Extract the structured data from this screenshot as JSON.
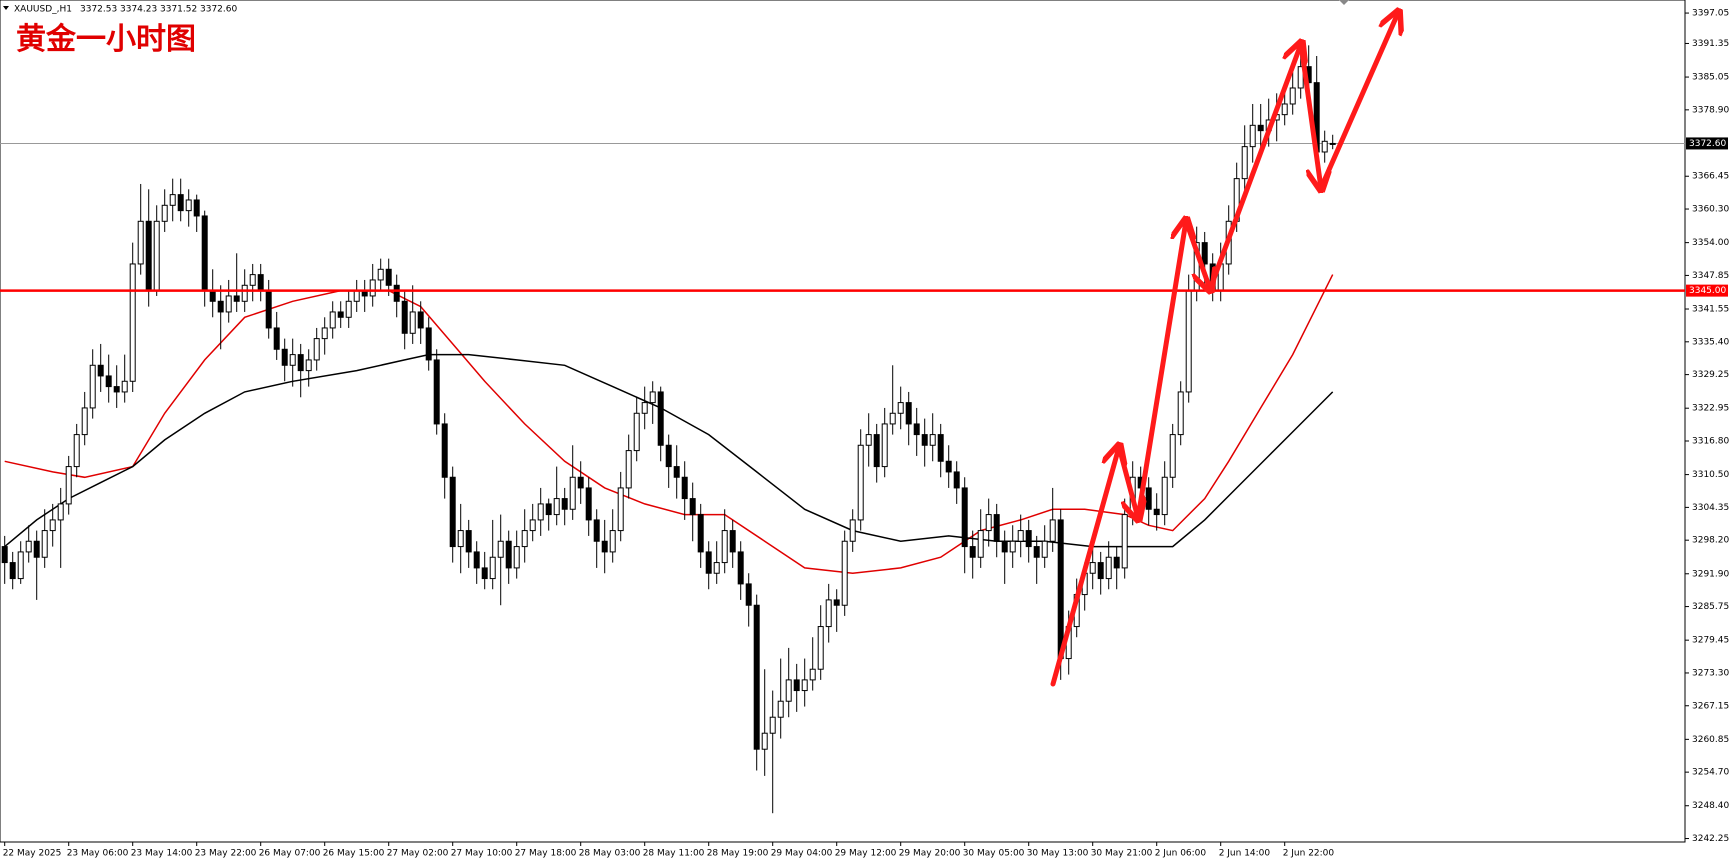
{
  "chart_data": {
    "type": "candlestick",
    "symbol": "XAUUSD_,H1",
    "header_values": [
      "3372.53",
      "3374.23",
      "3371.52",
      "3372.60"
    ],
    "title": "黄金一小时图",
    "categories": [
      "22 May 2025",
      null,
      null,
      null,
      null,
      null,
      null,
      null,
      "23 May 06:00",
      null,
      null,
      null,
      null,
      null,
      null,
      null,
      "23 May 14:00",
      null,
      null,
      null,
      null,
      null,
      null,
      null,
      "23 May 22:00",
      null,
      null,
      null,
      null,
      null,
      null,
      null,
      "26 May 07:00",
      null,
      null,
      null,
      null,
      null,
      null,
      null,
      "26 May 15:00",
      null,
      null,
      null,
      null,
      null,
      null,
      null,
      "27 May 02:00",
      null,
      null,
      null,
      null,
      null,
      null,
      null,
      "27 May 10:00",
      null,
      null,
      null,
      null,
      null,
      null,
      null,
      "27 May 18:00",
      null,
      null,
      null,
      null,
      null,
      null,
      null,
      "28 May 03:00",
      null,
      null,
      null,
      null,
      null,
      null,
      null,
      "28 May 11:00",
      null,
      null,
      null,
      null,
      null,
      null,
      null,
      "28 May 19:00",
      null,
      null,
      null,
      null,
      null,
      null,
      null,
      "29 May 04:00",
      null,
      null,
      null,
      null,
      null,
      null,
      null,
      "29 May 12:00",
      null,
      null,
      null,
      null,
      null,
      null,
      null,
      "29 May 20:00",
      null,
      null,
      null,
      null,
      null,
      null,
      null,
      "30 May 05:00",
      null,
      null,
      null,
      null,
      null,
      null,
      null,
      "30 May 13:00",
      null,
      null,
      null,
      null,
      null,
      null,
      null,
      "30 May 21:00",
      null,
      null,
      null,
      null,
      null,
      null,
      null,
      "2 Jun 06:00",
      null,
      null,
      null,
      null,
      null,
      null,
      null,
      "2 Jun 14:00",
      null,
      null,
      null,
      null,
      null,
      null,
      null,
      "2 Jun 22:00",
      null,
      null,
      null,
      null,
      null,
      null
    ],
    "ohlc": [
      [
        3297,
        3299,
        3290,
        3294
      ],
      [
        3294,
        3296,
        3289,
        3291
      ],
      [
        3291,
        3298,
        3290,
        3296
      ],
      [
        3296,
        3301,
        3294,
        3298
      ],
      [
        3298,
        3300,
        3287,
        3295
      ],
      [
        3295,
        3304,
        3293,
        3300
      ],
      [
        3300,
        3305,
        3297,
        3302
      ],
      [
        3302,
        3308,
        3293,
        3305
      ],
      [
        3305,
        3314,
        3303,
        3312
      ],
      [
        3312,
        3320,
        3310,
        3318
      ],
      [
        3318,
        3326,
        3316,
        3323
      ],
      [
        3323,
        3334,
        3321,
        3331
      ],
      [
        3331,
        3335,
        3326,
        3329
      ],
      [
        3329,
        3333,
        3324,
        3327
      ],
      [
        3327,
        3331,
        3323,
        3326
      ],
      [
        3326,
        3333,
        3324,
        3328
      ],
      [
        3328,
        3354,
        3326,
        3350
      ],
      [
        3350,
        3365,
        3348,
        3358
      ],
      [
        3358,
        3364,
        3342,
        3345
      ],
      [
        3345,
        3361,
        3344,
        3358
      ],
      [
        3358,
        3364,
        3356,
        3361
      ],
      [
        3361,
        3366,
        3358,
        3363
      ],
      [
        3363,
        3366,
        3358,
        3360
      ],
      [
        3360,
        3364,
        3357,
        3362
      ],
      [
        3362,
        3363,
        3356,
        3359
      ],
      [
        3359,
        3360,
        3342,
        3345
      ],
      [
        3345,
        3349,
        3340,
        3343
      ],
      [
        3343,
        3346,
        3334,
        3341
      ],
      [
        3341,
        3347,
        3339,
        3344
      ],
      [
        3344,
        3352,
        3341,
        3343
      ],
      [
        3343,
        3349,
        3341,
        3346
      ],
      [
        3346,
        3350,
        3343,
        3348
      ],
      [
        3348,
        3350,
        3343,
        3345
      ],
      [
        3345,
        3347,
        3336,
        3338
      ],
      [
        3338,
        3341,
        3332,
        3334
      ],
      [
        3334,
        3336,
        3328,
        3331
      ],
      [
        3331,
        3336,
        3327,
        3333
      ],
      [
        3333,
        3335,
        3325,
        3330
      ],
      [
        3330,
        3334,
        3327,
        3332
      ],
      [
        3332,
        3338,
        3330,
        3336
      ],
      [
        3336,
        3340,
        3333,
        3338
      ],
      [
        3338,
        3343,
        3336,
        3341
      ],
      [
        3341,
        3343,
        3338,
        3340
      ],
      [
        3340,
        3345,
        3338,
        3343
      ],
      [
        3343,
        3347,
        3341,
        3345
      ],
      [
        3345,
        3347,
        3341,
        3344
      ],
      [
        3344,
        3350,
        3342,
        3347
      ],
      [
        3347,
        3351,
        3345,
        3349
      ],
      [
        3349,
        3351,
        3344,
        3346
      ],
      [
        3346,
        3348,
        3340,
        3343
      ],
      [
        3343,
        3345,
        3334,
        3337
      ],
      [
        3337,
        3346,
        3335,
        3341
      ],
      [
        3341,
        3343,
        3335,
        3338
      ],
      [
        3338,
        3340,
        3330,
        3332
      ],
      [
        3332,
        3334,
        3318,
        3320
      ],
      [
        3320,
        3322,
        3306,
        3310
      ],
      [
        3310,
        3312,
        3294,
        3297
      ],
      [
        3297,
        3305,
        3292,
        3300
      ],
      [
        3300,
        3302,
        3293,
        3296
      ],
      [
        3296,
        3298,
        3290,
        3293
      ],
      [
        3293,
        3296,
        3289,
        3291
      ],
      [
        3291,
        3302,
        3289,
        3295
      ],
      [
        3295,
        3303,
        3286,
        3298
      ],
      [
        3298,
        3300,
        3290,
        3293
      ],
      [
        3293,
        3300,
        3291,
        3297
      ],
      [
        3297,
        3304,
        3294,
        3300
      ],
      [
        3300,
        3305,
        3298,
        3302
      ],
      [
        3302,
        3308,
        3299,
        3305
      ],
      [
        3305,
        3306,
        3300,
        3303
      ],
      [
        3303,
        3312,
        3301,
        3306
      ],
      [
        3306,
        3308,
        3301,
        3304
      ],
      [
        3304,
        3316,
        3302,
        3310
      ],
      [
        3310,
        3313,
        3305,
        3308
      ],
      [
        3308,
        3310,
        3299,
        3302
      ],
      [
        3302,
        3304,
        3293,
        3298
      ],
      [
        3298,
        3302,
        3292,
        3296
      ],
      [
        3296,
        3304,
        3294,
        3300
      ],
      [
        3300,
        3311,
        3298,
        3308
      ],
      [
        3308,
        3318,
        3306,
        3315
      ],
      [
        3315,
        3325,
        3313,
        3322
      ],
      [
        3322,
        3327,
        3319,
        3324
      ],
      [
        3324,
        3328,
        3320,
        3326
      ],
      [
        3326,
        3327,
        3313,
        3316
      ],
      [
        3316,
        3318,
        3308,
        3312
      ],
      [
        3312,
        3316,
        3306,
        3310
      ],
      [
        3310,
        3313,
        3302,
        3306
      ],
      [
        3306,
        3309,
        3298,
        3303
      ],
      [
        3303,
        3305,
        3293,
        3296
      ],
      [
        3296,
        3298,
        3289,
        3292
      ],
      [
        3292,
        3298,
        3290,
        3294
      ],
      [
        3294,
        3304,
        3292,
        3300
      ],
      [
        3300,
        3302,
        3293,
        3296
      ],
      [
        3296,
        3298,
        3287,
        3290
      ],
      [
        3290,
        3292,
        3282,
        3286
      ],
      [
        3286,
        3288,
        3255,
        3259
      ],
      [
        3259,
        3274,
        3254,
        3262
      ],
      [
        3262,
        3270,
        3247,
        3265
      ],
      [
        3265,
        3276,
        3261,
        3268
      ],
      [
        3268,
        3278,
        3265,
        3272
      ],
      [
        3272,
        3275,
        3266,
        3270
      ],
      [
        3270,
        3276,
        3267,
        3272
      ],
      [
        3272,
        3280,
        3270,
        3274
      ],
      [
        3274,
        3286,
        3272,
        3282
      ],
      [
        3282,
        3290,
        3279,
        3287
      ],
      [
        3287,
        3289,
        3281,
        3286
      ],
      [
        3286,
        3300,
        3284,
        3298
      ],
      [
        3298,
        3304,
        3296,
        3302
      ],
      [
        3302,
        3319,
        3300,
        3316
      ],
      [
        3316,
        3322,
        3312,
        3318
      ],
      [
        3318,
        3320,
        3309,
        3312
      ],
      [
        3312,
        3323,
        3310,
        3320
      ],
      [
        3320,
        3331,
        3318,
        3322
      ],
      [
        3322,
        3327,
        3319,
        3324
      ],
      [
        3324,
        3326,
        3316,
        3320
      ],
      [
        3320,
        3323,
        3314,
        3318
      ],
      [
        3318,
        3321,
        3312,
        3316
      ],
      [
        3316,
        3322,
        3313,
        3318
      ],
      [
        3318,
        3320,
        3310,
        3313
      ],
      [
        3313,
        3316,
        3308,
        3311
      ],
      [
        3311,
        3313,
        3305,
        3308
      ],
      [
        3308,
        3310,
        3292,
        3297
      ],
      [
        3297,
        3300,
        3291,
        3295
      ],
      [
        3295,
        3304,
        3293,
        3300
      ],
      [
        3300,
        3306,
        3297,
        3303
      ],
      [
        3303,
        3305,
        3295,
        3298
      ],
      [
        3298,
        3300,
        3290,
        3296
      ],
      [
        3296,
        3301,
        3293,
        3298
      ],
      [
        3298,
        3303,
        3295,
        3300
      ],
      [
        3300,
        3302,
        3294,
        3297
      ],
      [
        3297,
        3299,
        3290,
        3295
      ],
      [
        3295,
        3301,
        3293,
        3298
      ],
      [
        3298,
        3308,
        3296,
        3302
      ],
      [
        3302,
        3304,
        3272,
        3276
      ],
      [
        3276,
        3285,
        3273,
        3282
      ],
      [
        3282,
        3291,
        3280,
        3288
      ],
      [
        3288,
        3294,
        3285,
        3292
      ],
      [
        3292,
        3297,
        3289,
        3294
      ],
      [
        3294,
        3296,
        3288,
        3291
      ],
      [
        3291,
        3298,
        3289,
        3295
      ],
      [
        3295,
        3297,
        3289,
        3293
      ],
      [
        3293,
        3306,
        3291,
        3303
      ],
      [
        3303,
        3313,
        3301,
        3310
      ],
      [
        3310,
        3312,
        3304,
        3308
      ],
      [
        3308,
        3310,
        3301,
        3304
      ],
      [
        3304,
        3307,
        3300,
        3303
      ],
      [
        3303,
        3313,
        3301,
        3310
      ],
      [
        3310,
        3320,
        3308,
        3318
      ],
      [
        3318,
        3328,
        3316,
        3326
      ],
      [
        3326,
        3348,
        3324,
        3345
      ],
      [
        3345,
        3357,
        3343,
        3354
      ],
      [
        3354,
        3356,
        3346,
        3350
      ],
      [
        3350,
        3352,
        3343,
        3345
      ],
      [
        3345,
        3354,
        3343,
        3350
      ],
      [
        3350,
        3361,
        3348,
        3358
      ],
      [
        3358,
        3369,
        3356,
        3366
      ],
      [
        3366,
        3376,
        3363,
        3372
      ],
      [
        3372,
        3380,
        3369,
        3376
      ],
      [
        3376,
        3380,
        3371,
        3375
      ],
      [
        3375,
        3381,
        3372,
        3377
      ],
      [
        3377,
        3382,
        3373,
        3378
      ],
      [
        3378,
        3383,
        3376,
        3380
      ],
      [
        3380,
        3386,
        3378,
        3383
      ],
      [
        3383,
        3390,
        3381,
        3387
      ],
      [
        3387,
        3391,
        3380,
        3384
      ],
      [
        3384,
        3389,
        3368,
        3371
      ],
      [
        3371,
        3375,
        3369,
        3373
      ],
      [
        3372.53,
        3374.23,
        3371.52,
        3372.6
      ]
    ],
    "moving_averages": [
      {
        "color": "#e00000",
        "x": [
          0,
          6,
          10,
          16,
          20,
          25,
          30,
          36,
          42,
          48,
          52,
          56,
          60,
          65,
          70,
          75,
          80,
          85,
          90,
          95,
          100,
          106,
          112,
          117,
          122,
          127,
          131,
          135,
          140,
          143,
          146,
          150,
          153,
          157,
          161,
          166
        ],
        "values": [
          3313,
          3311,
          3310,
          3312,
          3322,
          3332,
          3340,
          3343,
          3345,
          3345,
          3342,
          3335,
          3328,
          3320,
          3313,
          3308,
          3305,
          3303,
          3303,
          3298,
          3293,
          3292,
          3293,
          3295,
          3300,
          3302,
          3304,
          3304,
          3303,
          3301,
          3300,
          3306,
          3313,
          3323,
          3333,
          3348
        ]
      },
      {
        "color": "#000000",
        "x": [
          0,
          4,
          8,
          12,
          16,
          20,
          25,
          30,
          36,
          44,
          50,
          53,
          58,
          64,
          70,
          76,
          82,
          88,
          94,
          100,
          106,
          112,
          118,
          124,
          130,
          136,
          142,
          146,
          150,
          154,
          158,
          162,
          166
        ],
        "values": [
          3297,
          3302,
          3306,
          3309,
          3312,
          3317,
          3322,
          3326,
          3328,
          3330,
          3332,
          3333,
          3333,
          3332,
          3331,
          3327,
          3323,
          3318,
          3311,
          3304,
          3300,
          3298,
          3299,
          3298,
          3298,
          3297,
          3297,
          3297,
          3302,
          3308,
          3314,
          3320,
          3326
        ]
      }
    ],
    "price_line": {
      "value": 3372.6,
      "label": "3372.60"
    },
    "level_line": {
      "value": 3345,
      "label": "3345.00",
      "color": "#ff0000"
    },
    "ylim": [
      3241.6,
      3399.5
    ],
    "yticks": [
      3397.05,
      3391.35,
      3385.05,
      {
        "value": 3378.9,
        "label": "3378.90"
      },
      3366.45,
      {
        "value": 3360.3,
        "label": "3360.30"
      },
      {
        "value": 3354,
        "label": "3354.00"
      },
      3347.85,
      3341.55,
      {
        "value": 3335.4,
        "label": "3335.40"
      },
      3329.25,
      3322.95,
      {
        "value": 3316.8,
        "label": "3316.80"
      },
      {
        "value": 3310.5,
        "label": "3310.50"
      },
      3304.35,
      {
        "value": 3298.2,
        "label": "3298.20"
      },
      {
        "value": 3291.9,
        "label": "3291.90"
      },
      3285.75,
      3279.45,
      {
        "value": 3273.3,
        "label": "3273.30"
      },
      3267.15,
      3260.85,
      {
        "value": 3254.7,
        "label": "3254.70"
      },
      {
        "value": 3248.4,
        "label": "3248.40"
      },
      3242.25
    ]
  }
}
